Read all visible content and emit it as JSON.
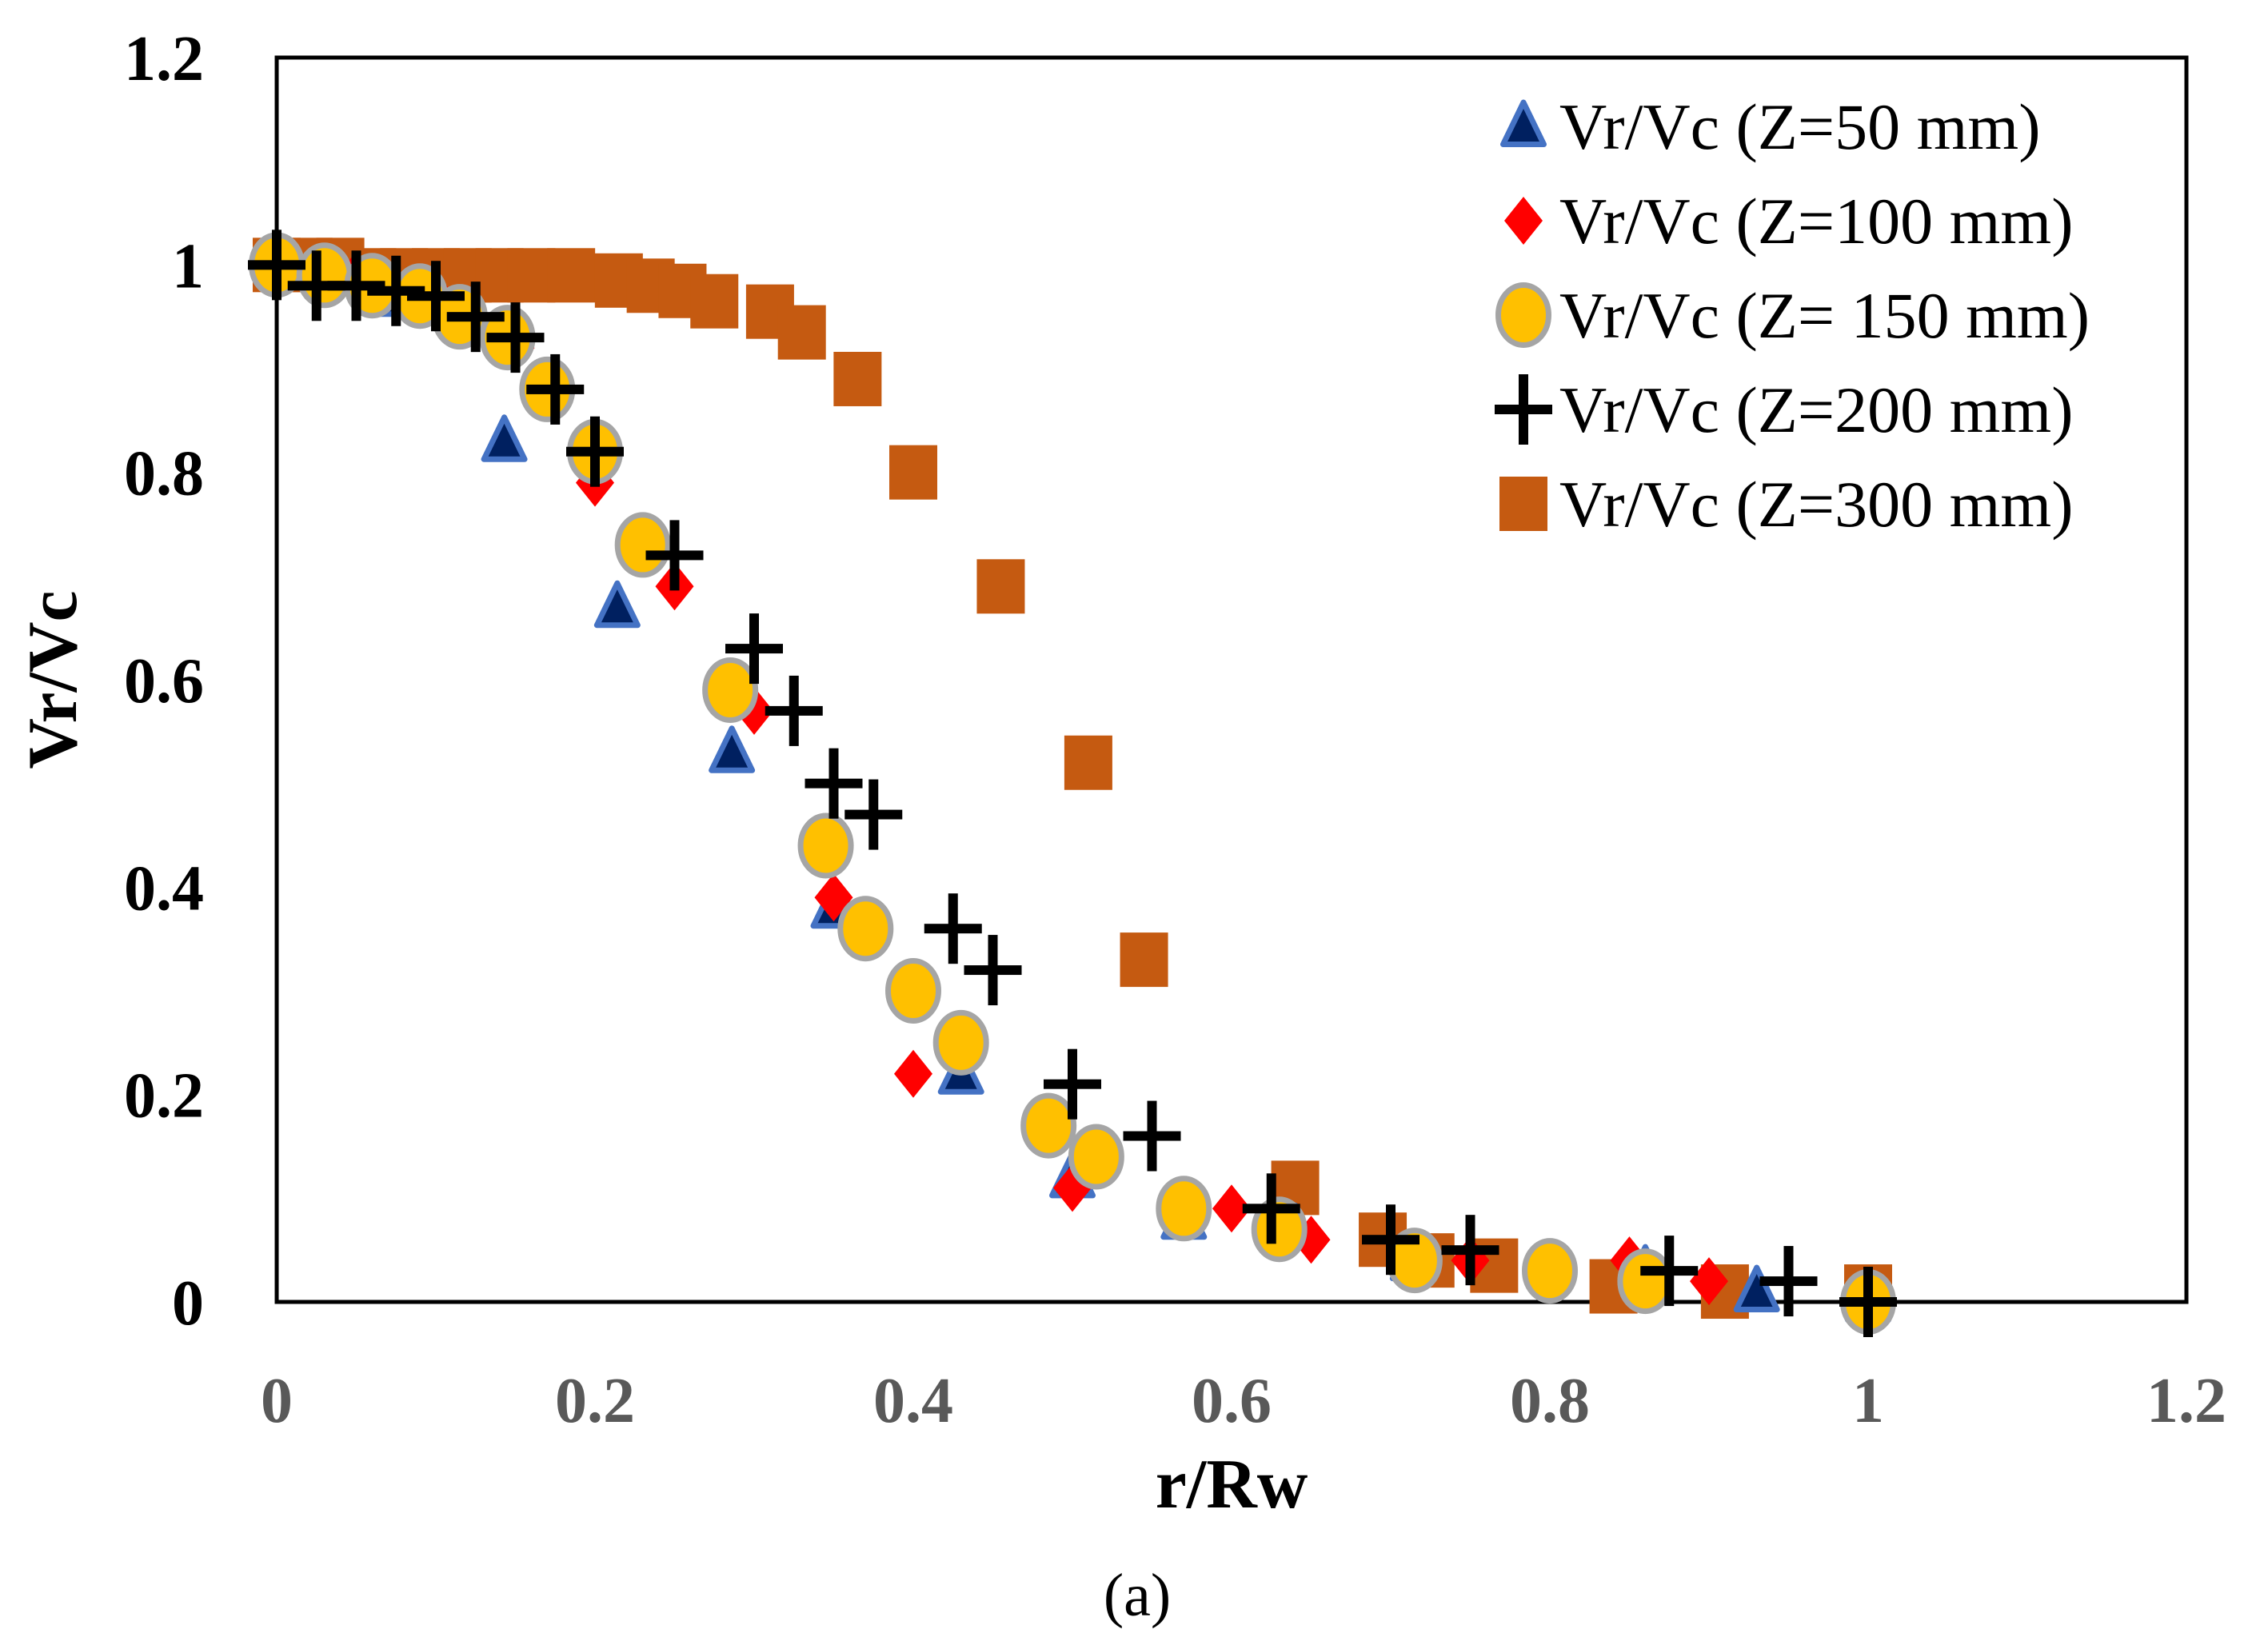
{
  "chart_data": {
    "type": "scatter",
    "title": "",
    "xlabel": "r/Rw",
    "ylabel": "Vr/Vc",
    "caption": "(a)",
    "xlim": [
      0,
      1.2
    ],
    "ylim": [
      0,
      1.2
    ],
    "xticks": [
      "0",
      "0.2",
      "0.4",
      "0.6",
      "0.8",
      "1",
      "1.2"
    ],
    "yticks": [
      "0",
      "0.2",
      "0.4",
      "0.6",
      "0.8",
      "1",
      "1.2"
    ],
    "grid": false,
    "legend_position": "top-right",
    "series": [
      {
        "name": "Vr/Vc (Z=50 mm)",
        "marker": "triangle",
        "color": "#002060",
        "edge": "#4472C4",
        "points": [
          [
            0,
            1
          ],
          [
            0.07,
            0.97
          ],
          [
            0.143,
            0.83
          ],
          [
            0.214,
            0.67
          ],
          [
            0.286,
            0.53
          ],
          [
            0.35,
            0.38
          ],
          [
            0.43,
            0.22
          ],
          [
            0.5,
            0.12
          ],
          [
            0.57,
            0.08
          ],
          [
            0.64,
            0.07
          ],
          [
            0.714,
            0.04
          ],
          [
            0.86,
            0.03
          ],
          [
            0.93,
            0.01
          ],
          [
            1,
            0
          ]
        ]
      },
      {
        "name": "Vr/Vc (Z=100 mm)",
        "marker": "diamond",
        "color": "#FF0000",
        "edge": "#FF0000",
        "points": [
          [
            0,
            1
          ],
          [
            0.05,
            0.99
          ],
          [
            0.1,
            0.97
          ],
          [
            0.15,
            0.92
          ],
          [
            0.2,
            0.79
          ],
          [
            0.25,
            0.69
          ],
          [
            0.3,
            0.57
          ],
          [
            0.35,
            0.39
          ],
          [
            0.4,
            0.22
          ],
          [
            0.5,
            0.11
          ],
          [
            0.6,
            0.09
          ],
          [
            0.65,
            0.06
          ],
          [
            0.75,
            0.04
          ],
          [
            0.85,
            0.04
          ],
          [
            0.9,
            0.02
          ],
          [
            1,
            0
          ]
        ]
      },
      {
        "name": "Vr/Vc (Z= 150 mm)",
        "marker": "circle",
        "color": "#FFC000",
        "edge": "#A5A5A5",
        "points": [
          [
            0,
            1
          ],
          [
            0.03,
            0.99
          ],
          [
            0.06,
            0.98
          ],
          [
            0.09,
            0.97
          ],
          [
            0.115,
            0.95
          ],
          [
            0.145,
            0.93
          ],
          [
            0.17,
            0.88
          ],
          [
            0.2,
            0.82
          ],
          [
            0.23,
            0.73
          ],
          [
            0.285,
            0.59
          ],
          [
            0.345,
            0.44
          ],
          [
            0.37,
            0.36
          ],
          [
            0.4,
            0.3
          ],
          [
            0.43,
            0.25
          ],
          [
            0.485,
            0.17
          ],
          [
            0.515,
            0.14
          ],
          [
            0.57,
            0.09
          ],
          [
            0.63,
            0.07
          ],
          [
            0.715,
            0.04
          ],
          [
            0.8,
            0.03
          ],
          [
            0.86,
            0.02
          ],
          [
            1,
            0
          ]
        ]
      },
      {
        "name": "Vr/Vc (Z=200 mm)",
        "marker": "plus",
        "color": "#000000",
        "edge": "#000000",
        "points": [
          [
            0,
            1
          ],
          [
            0.025,
            0.98
          ],
          [
            0.05,
            0.98
          ],
          [
            0.075,
            0.975
          ],
          [
            0.1,
            0.97
          ],
          [
            0.125,
            0.95
          ],
          [
            0.15,
            0.93
          ],
          [
            0.175,
            0.88
          ],
          [
            0.2,
            0.82
          ],
          [
            0.25,
            0.72
          ],
          [
            0.3,
            0.63
          ],
          [
            0.325,
            0.57
          ],
          [
            0.35,
            0.5
          ],
          [
            0.375,
            0.47
          ],
          [
            0.425,
            0.36
          ],
          [
            0.45,
            0.32
          ],
          [
            0.5,
            0.21
          ],
          [
            0.55,
            0.16
          ],
          [
            0.625,
            0.09
          ],
          [
            0.7,
            0.06
          ],
          [
            0.75,
            0.05
          ],
          [
            0.875,
            0.03
          ],
          [
            0.95,
            0.02
          ],
          [
            1,
            0
          ]
        ]
      },
      {
        "name": "Vr/Vc (Z=300 mm)",
        "marker": "square",
        "color": "#C55A11",
        "edge": "#C55A11",
        "points": [
          [
            0,
            1
          ],
          [
            0.02,
            1
          ],
          [
            0.04,
            1
          ],
          [
            0.06,
            0.99
          ],
          [
            0.08,
            0.99
          ],
          [
            0.1,
            0.99
          ],
          [
            0.12,
            0.99
          ],
          [
            0.14,
            0.99
          ],
          [
            0.16,
            0.99
          ],
          [
            0.185,
            0.99
          ],
          [
            0.215,
            0.985
          ],
          [
            0.235,
            0.98
          ],
          [
            0.255,
            0.975
          ],
          [
            0.275,
            0.965
          ],
          [
            0.31,
            0.955
          ],
          [
            0.33,
            0.935
          ],
          [
            0.365,
            0.89
          ],
          [
            0.4,
            0.8
          ],
          [
            0.455,
            0.69
          ],
          [
            0.51,
            0.52
          ],
          [
            0.545,
            0.33
          ],
          [
            0.64,
            0.11
          ],
          [
            0.695,
            0.06
          ],
          [
            0.725,
            0.04
          ],
          [
            0.765,
            0.035
          ],
          [
            0.84,
            0.015
          ],
          [
            0.91,
            0.01
          ],
          [
            1,
            0.01
          ]
        ]
      }
    ]
  }
}
